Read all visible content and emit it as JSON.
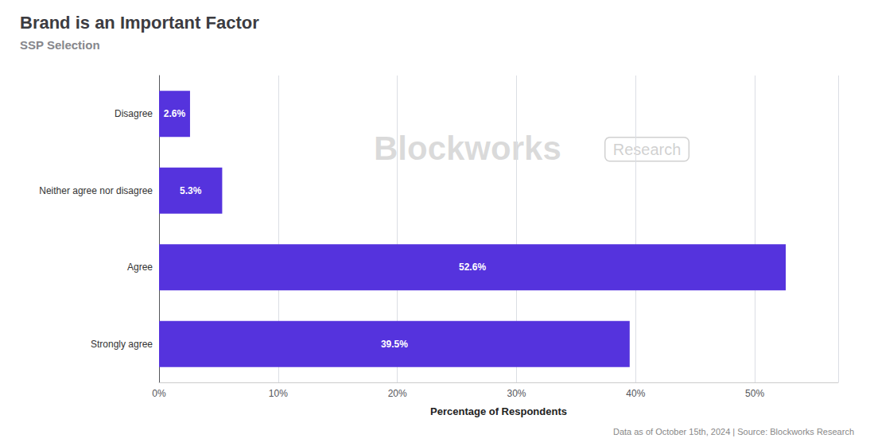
{
  "chart_data": {
    "type": "bar",
    "orientation": "horizontal",
    "title": "Brand is an Important Factor",
    "subtitle": "SSP Selection",
    "categories": [
      "Strongly agree",
      "Agree",
      "Neither agree nor disagree",
      "Disagree"
    ],
    "values": [
      39.5,
      52.6,
      5.3,
      2.6
    ],
    "value_labels": [
      "39.5%",
      "52.6%",
      "5.3%",
      "2.6%"
    ],
    "data_labels": true,
    "color": "#5533DD",
    "xlabel": "Percentage of Respondents",
    "xlim": [
      0,
      57
    ],
    "xticks": [
      {
        "value": 0,
        "label": "0%"
      },
      {
        "value": 10,
        "label": "10%"
      },
      {
        "value": 20,
        "label": "20%"
      },
      {
        "value": 30,
        "label": "30%"
      },
      {
        "value": 40,
        "label": "40%"
      },
      {
        "value": 50,
        "label": "50%"
      }
    ],
    "grid": true,
    "annotations": [
      "Data as of October 15th, 2024 | Source: Blockworks Research",
      "Blockworks",
      "Research"
    ]
  }
}
